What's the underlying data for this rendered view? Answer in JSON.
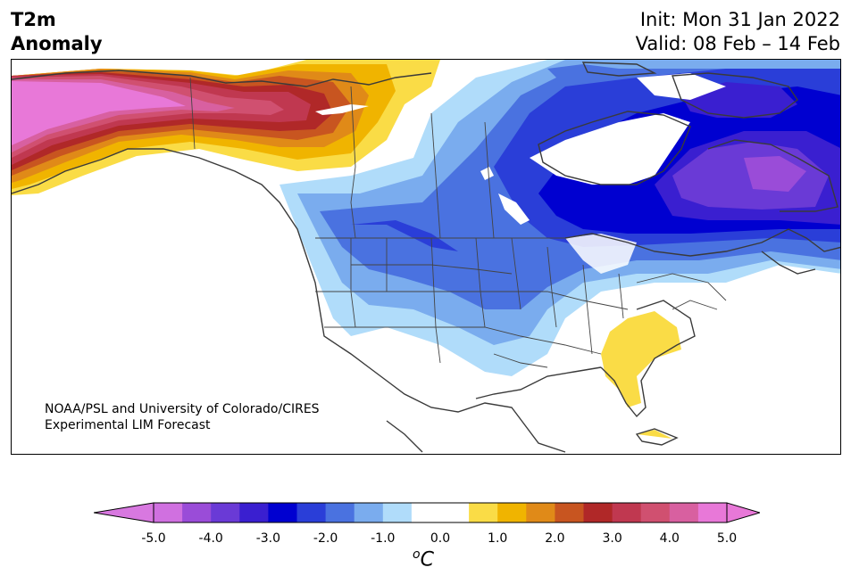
{
  "header": {
    "var_line1": "T2m",
    "var_line2": "Anomaly",
    "init_line": "Init: Mon 31 Jan 2022",
    "valid_line": "Valid: 08 Feb – 14 Feb"
  },
  "credit": {
    "line1": "NOAA/PSL and University of Colorado/CIRES",
    "line2": "Experimental LIM Forecast"
  },
  "colorbar": {
    "ticks": [
      "-5.0",
      "-4.0",
      "-3.0",
      "-2.0",
      "-1.0",
      "0.0",
      "1.0",
      "2.0",
      "3.0",
      "4.0",
      "5.0"
    ],
    "unit_base": "C",
    "unit_sup": "o",
    "colors": [
      "#d070e0",
      "#9a4cd8",
      "#6a3ad6",
      "#3a1fd0",
      "#0000d0",
      "#2a3ed8",
      "#4a72e0",
      "#7aacee",
      "#b0dcfa",
      "#ffffff",
      "#ffffff",
      "#fadc46",
      "#f0b400",
      "#e08a18",
      "#c85520",
      "#b02828",
      "#c03850",
      "#d05070",
      "#d860a0",
      "#e878d8"
    ],
    "under_color": "#d878e0",
    "over_color": "#e878d8"
  },
  "map_colors": {
    "land": "#ffffff",
    "coast": "#3a3a3a",
    "border": "#444444"
  }
}
